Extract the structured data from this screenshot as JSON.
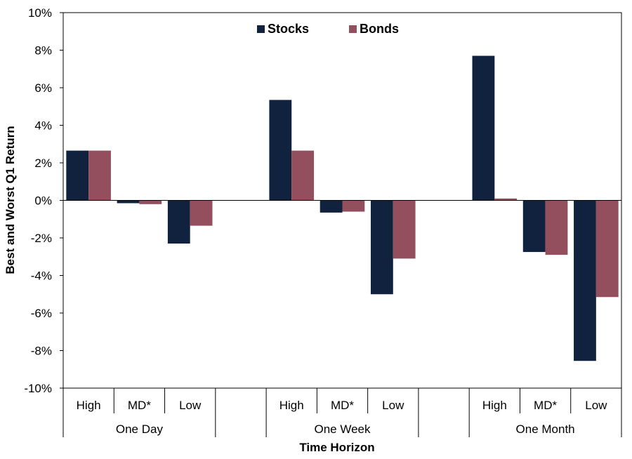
{
  "chart_data": {
    "type": "bar",
    "title": "",
    "xlabel": "Time Horizon",
    "ylabel": "Best and Worst Q1 Return",
    "ylim": [
      -10,
      10
    ],
    "ytick_step": 2,
    "y_format": "percent",
    "groups": [
      {
        "label": "One Day",
        "categories": [
          "High",
          "MD*",
          "Low"
        ]
      },
      {
        "label": "One Week",
        "categories": [
          "High",
          "MD*",
          "Low"
        ]
      },
      {
        "label": "One Month",
        "categories": [
          "High",
          "MD*",
          "Low"
        ]
      }
    ],
    "series": [
      {
        "name": "Stocks",
        "color": "#11223F",
        "values": [
          2.65,
          -0.15,
          -2.3,
          5.35,
          -0.65,
          -5.0,
          7.7,
          -2.75,
          -8.55
        ]
      },
      {
        "name": "Bonds",
        "color": "#944F5F",
        "values": [
          2.65,
          -0.2,
          -1.35,
          2.65,
          -0.6,
          -3.1,
          0.1,
          -2.9,
          -5.15
        ]
      }
    ],
    "legend": "top-center",
    "grid": false
  }
}
